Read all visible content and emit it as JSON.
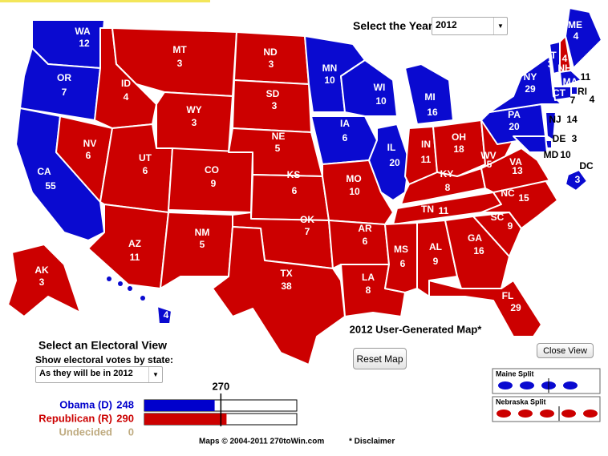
{
  "header": {
    "year_label": "Select the Year",
    "year": "2012"
  },
  "map": {
    "title": "2012 User-Generated Map*",
    "colors": {
      "D": "#0a0ad0",
      "R": "#cc0000"
    },
    "states": [
      {
        "name": "WA",
        "votes": 12,
        "party": "D"
      },
      {
        "name": "OR",
        "votes": 7,
        "party": "D"
      },
      {
        "name": "CA",
        "votes": 55,
        "party": "D"
      },
      {
        "name": "NV",
        "votes": 6,
        "party": "R"
      },
      {
        "name": "ID",
        "votes": 4,
        "party": "R"
      },
      {
        "name": "MT",
        "votes": 3,
        "party": "R"
      },
      {
        "name": "WY",
        "votes": 3,
        "party": "R"
      },
      {
        "name": "UT",
        "votes": 6,
        "party": "R"
      },
      {
        "name": "CO",
        "votes": 9,
        "party": "R"
      },
      {
        "name": "AZ",
        "votes": 11,
        "party": "R"
      },
      {
        "name": "NM",
        "votes": 5,
        "party": "R"
      },
      {
        "name": "ND",
        "votes": 3,
        "party": "R"
      },
      {
        "name": "SD",
        "votes": 3,
        "party": "R"
      },
      {
        "name": "NE",
        "votes": 5,
        "party": "R"
      },
      {
        "name": "KS",
        "votes": 6,
        "party": "R"
      },
      {
        "name": "OK",
        "votes": 7,
        "party": "R"
      },
      {
        "name": "TX",
        "votes": 38,
        "party": "R"
      },
      {
        "name": "MN",
        "votes": 10,
        "party": "D"
      },
      {
        "name": "IA",
        "votes": 6,
        "party": "D"
      },
      {
        "name": "MO",
        "votes": 10,
        "party": "R"
      },
      {
        "name": "WI",
        "votes": 10,
        "party": "D"
      },
      {
        "name": "IL",
        "votes": 20,
        "party": "D"
      },
      {
        "name": "MI",
        "votes": 16,
        "party": "D"
      },
      {
        "name": "IN",
        "votes": 11,
        "party": "R"
      },
      {
        "name": "OH",
        "votes": 18,
        "party": "R"
      },
      {
        "name": "KY",
        "votes": 8,
        "party": "R"
      },
      {
        "name": "TN",
        "votes": 11,
        "party": "R"
      },
      {
        "name": "AR",
        "votes": 6,
        "party": "R"
      },
      {
        "name": "LA",
        "votes": 8,
        "party": "R"
      },
      {
        "name": "MS",
        "votes": 6,
        "party": "R"
      },
      {
        "name": "AL",
        "votes": 9,
        "party": "R"
      },
      {
        "name": "GA",
        "votes": 16,
        "party": "R"
      },
      {
        "name": "FL",
        "votes": 29,
        "party": "R"
      },
      {
        "name": "SC",
        "votes": 9,
        "party": "R"
      },
      {
        "name": "NC",
        "votes": 15,
        "party": "R"
      },
      {
        "name": "VA",
        "votes": 13,
        "party": "R"
      },
      {
        "name": "WV",
        "votes": 5,
        "party": "R"
      },
      {
        "name": "PA",
        "votes": 20,
        "party": "D"
      },
      {
        "name": "NY",
        "votes": 29,
        "party": "D"
      },
      {
        "name": "VT",
        "votes": 3,
        "party": "D"
      },
      {
        "name": "NH",
        "votes": 4,
        "party": "R"
      },
      {
        "name": "ME",
        "votes": 4,
        "party": "D"
      },
      {
        "name": "MA",
        "votes": 11,
        "party": "D"
      },
      {
        "name": "RI",
        "votes": 4,
        "party": "D"
      },
      {
        "name": "CT",
        "votes": 7,
        "party": "D"
      },
      {
        "name": "NJ",
        "votes": 14,
        "party": "D"
      },
      {
        "name": "DE",
        "votes": 3,
        "party": "D"
      },
      {
        "name": "MD",
        "votes": 10,
        "party": "D"
      },
      {
        "name": "DC",
        "votes": 3,
        "party": "D"
      },
      {
        "name": "AK",
        "votes": 3,
        "party": "R"
      },
      {
        "name": "HI",
        "votes": 4,
        "party": "D"
      }
    ]
  },
  "controls": {
    "reset": "Reset Map",
    "close": "Close View",
    "view_title": "Select an Electoral View",
    "view_label": "Show electoral votes by state:",
    "view_option": "As they will be in 2012",
    "maine_split": "Maine Split",
    "nebraska_split": "Nebraska Split"
  },
  "tally": {
    "threshold": 270,
    "rows": [
      {
        "name": "Obama (D)",
        "votes": 248,
        "color": "#0000cc"
      },
      {
        "name": "Republican (R)",
        "votes": 290,
        "color": "#cc0000"
      },
      {
        "name": "Undecided",
        "votes": 0,
        "color": "#bfab80"
      }
    ]
  },
  "footer": {
    "credit": "Maps © 2004-2011 270toWin.com",
    "disclaimer": "* Disclaimer"
  }
}
